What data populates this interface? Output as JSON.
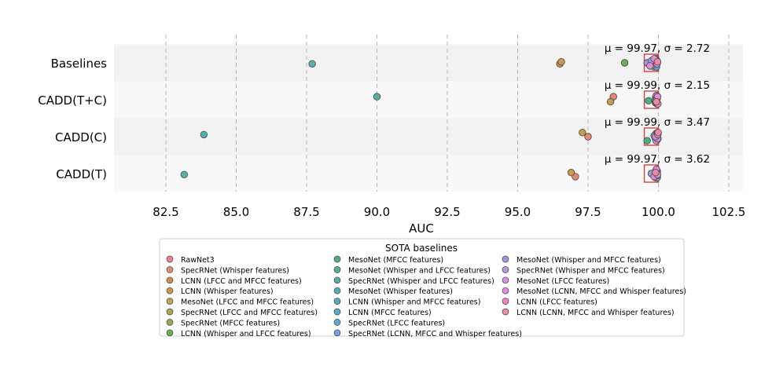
{
  "chart_data": {
    "type": "scatter",
    "title": "",
    "xlabel": "AUC",
    "ylabel": "",
    "xlim": [
      80.5,
      102.6
    ],
    "xticks": [
      82.5,
      85.0,
      87.5,
      90.0,
      92.5,
      95.0,
      97.5,
      100.0,
      102.5
    ],
    "xtick_labels": [
      "82.5",
      "85.0",
      "87.5",
      "90.0",
      "92.5",
      "95.0",
      "97.5",
      "100.0",
      "102.5"
    ],
    "grid": "vertical dashed",
    "categories": [
      "Baselines",
      "CADD(T+C)",
      "CADD(C)",
      "CADD(T)"
    ],
    "stats": [
      {
        "category": "Baselines",
        "mean": 99.97,
        "std": 2.72,
        "label": "μ = 99.97, σ = 2.72"
      },
      {
        "category": "CADD(T+C)",
        "mean": 99.99,
        "std": 2.15,
        "label": "μ = 99.99, σ = 2.15"
      },
      {
        "category": "CADD(C)",
        "mean": 99.99,
        "std": 3.47,
        "label": "μ = 99.99, σ = 3.47"
      },
      {
        "category": "CADD(T)",
        "mean": 99.97,
        "std": 3.62,
        "label": "μ = 99.97, σ = 3.62"
      }
    ],
    "legend_title": "SOTA baselines",
    "legend_position": "bottom-center",
    "series": [
      {
        "name": "RawNet3",
        "color": "#e8808f",
        "values": [
          99.9,
          99.95,
          99.98,
          99.93
        ]
      },
      {
        "name": "SpecRNet (Whisper features)",
        "color": "#e48a72",
        "values": [
          99.8,
          98.4,
          97.5,
          97.05
        ]
      },
      {
        "name": "LCNN (LFCC and MFCC features)",
        "color": "#d48b4f",
        "values": [
          96.5,
          99.95,
          99.97,
          99.9
        ]
      },
      {
        "name": "LCNN (Whisper features)",
        "color": "#c99a4c",
        "values": [
          96.55,
          98.3,
          97.3,
          96.9
        ]
      },
      {
        "name": "MesoNet (LFCC and MFCC features)",
        "color": "#c4a25a",
        "values": [
          99.9,
          99.92,
          99.95,
          99.94
        ]
      },
      {
        "name": "SpecRNet (LFCC and MFCC features)",
        "color": "#aca457",
        "values": [
          99.85,
          99.9,
          99.93,
          99.9
        ]
      },
      {
        "name": "SpecRNet (MFCC features)",
        "color": "#9aac55",
        "values": [
          99.88,
          99.93,
          99.95,
          99.92
        ]
      },
      {
        "name": "LCNN (Whisper and LFCC features)",
        "color": "#6cae55",
        "values": [
          98.8,
          99.9,
          99.92,
          99.95
        ]
      },
      {
        "name": "MesoNet (MFCC features)",
        "color": "#4fb07f",
        "values": [
          99.95,
          99.65,
          99.6,
          99.96
        ]
      },
      {
        "name": "MesoNet (Whisper and LFCC features)",
        "color": "#52b09b",
        "values": [
          99.9,
          99.95,
          99.9,
          99.93
        ]
      },
      {
        "name": "SpecRNet (Whisper and LFCC features)",
        "color": "#53b0a8",
        "values": [
          99.93,
          90.0,
          99.95,
          99.95
        ]
      },
      {
        "name": "MesoNet (Whisper features)",
        "color": "#55b0b0",
        "values": [
          87.7,
          99.96,
          83.85,
          83.15
        ]
      },
      {
        "name": "LCNN (Whisper and MFCC features)",
        "color": "#58adbc",
        "values": [
          99.95,
          99.9,
          99.97,
          99.95
        ]
      },
      {
        "name": "LCNN (MFCC features)",
        "color": "#5aabc7",
        "values": [
          99.9,
          99.93,
          99.96,
          99.92
        ]
      },
      {
        "name": "SpecRNet (LFCC features)",
        "color": "#5ea7d5",
        "values": [
          99.93,
          99.95,
          99.94,
          99.96
        ]
      },
      {
        "name": "SpecRNet (LCNN, MFCC and Whisper features)",
        "color": "#7aa1dd",
        "values": [
          99.8,
          99.92,
          99.85,
          99.95
        ]
      },
      {
        "name": "MesoNet (Whisper and MFCC features)",
        "color": "#9a9ae0",
        "values": [
          99.6,
          99.95,
          99.97,
          99.75
        ]
      },
      {
        "name": "SpecRNet (Whisper and MFCC features)",
        "color": "#b596e0",
        "values": [
          99.75,
          99.9,
          99.92,
          99.95
        ]
      },
      {
        "name": "MesoNet (LFCC features)",
        "color": "#d98fe0",
        "values": [
          99.85,
          99.95,
          99.97,
          99.93
        ]
      },
      {
        "name": "MesoNet (LCNN, MFCC and Whisper features)",
        "color": "#e38cd3",
        "values": [
          99.7,
          99.97,
          99.9,
          99.85
        ]
      },
      {
        "name": "LCNN (LFCC features)",
        "color": "#e98bbd",
        "values": [
          99.95,
          99.98,
          99.98,
          99.97
        ]
      },
      {
        "name": "LCNN (LCNN, MFCC and Whisper features)",
        "color": "#ec89a6",
        "values": [
          99.97,
          99.93,
          99.99,
          99.9
        ]
      }
    ]
  }
}
